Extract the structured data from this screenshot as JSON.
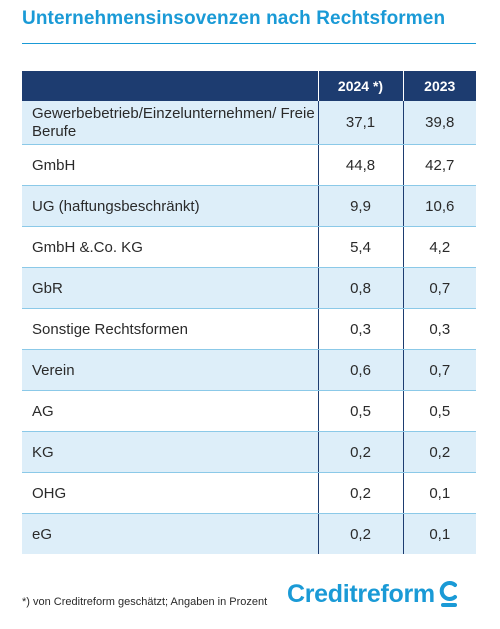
{
  "title": "Unternehmensinsovenzen nach Rechtsformen",
  "chart_data": {
    "type": "table",
    "columns": [
      "",
      "2024 *)",
      "2023"
    ],
    "rows": [
      {
        "label": "Gewerbebetrieb/Einzelunternehmen/ Freie Berufe",
        "v2024": "37,1",
        "v2023": "39,8"
      },
      {
        "label": "GmbH",
        "v2024": "44,8",
        "v2023": "42,7"
      },
      {
        "label": "UG (haftungsbeschränkt)",
        "v2024": "9,9",
        "v2023": "10,6"
      },
      {
        "label": "GmbH &.Co. KG",
        "v2024": "5,4",
        "v2023": "4,2"
      },
      {
        "label": "GbR",
        "v2024": "0,8",
        "v2023": "0,7"
      },
      {
        "label": "Sonstige Rechtsformen",
        "v2024": "0,3",
        "v2023": "0,3"
      },
      {
        "label": "Verein",
        "v2024": "0,6",
        "v2023": "0,7"
      },
      {
        "label": "AG",
        "v2024": "0,5",
        "v2023": "0,5"
      },
      {
        "label": "KG",
        "v2024": "0,2",
        "v2023": "0,2"
      },
      {
        "label": "OHG",
        "v2024": "0,2",
        "v2023": "0,1"
      },
      {
        "label": "eG",
        "v2024": "0,2",
        "v2023": "0,1"
      }
    ]
  },
  "footnote": "*) von Creditreform geschätzt; Angaben in Prozent",
  "logo": {
    "text": "Creditreform"
  },
  "colors": {
    "accent": "#1a9ad6",
    "header_bg": "#1d3c70",
    "row_alt": "#ddeef9",
    "rule": "#8bc9e8"
  }
}
